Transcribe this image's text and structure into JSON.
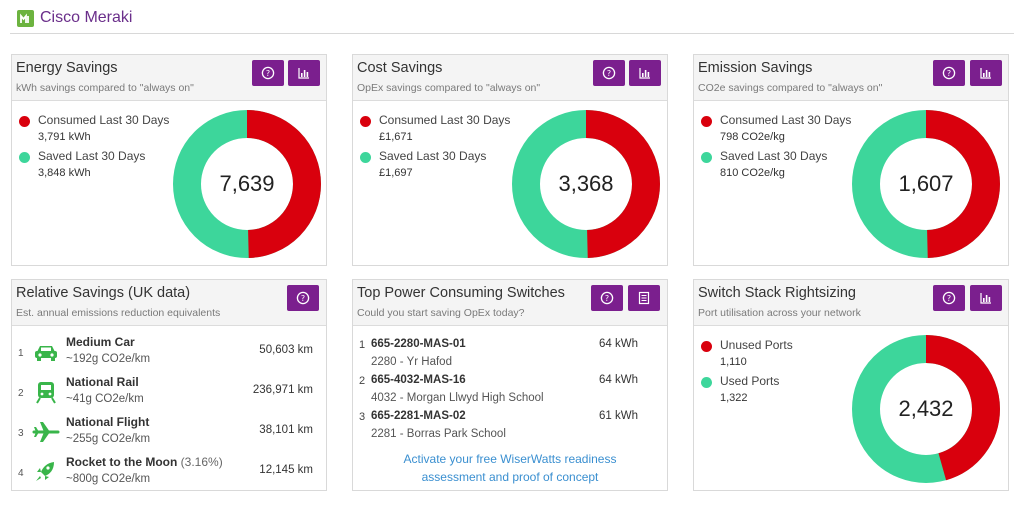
{
  "app": {
    "brand": "Cisco Meraki",
    "logo_icon": "meraki-logo-icon"
  },
  "colors": {
    "consumed": "#d9000d",
    "saved": "#3dd69b",
    "button": "#7b1f8e",
    "link": "#3a8fd0"
  },
  "energy": {
    "title": "Energy Savings",
    "subtitle": "kWh savings compared to \"always on\"",
    "consumed_label": "Consumed Last 30 Days",
    "consumed_value": "3,791 kWh",
    "saved_label": "Saved Last 30 Days",
    "saved_value": "3,848 kWh",
    "total": "7,639",
    "consumed_fraction": 0.496
  },
  "cost": {
    "title": "Cost Savings",
    "subtitle": "OpEx savings compared to \"always on\"",
    "consumed_label": "Consumed Last 30 Days",
    "consumed_value": "£1,671",
    "saved_label": "Saved Last 30 Days",
    "saved_value": "£1,697",
    "total": "3,368",
    "consumed_fraction": 0.496
  },
  "emission": {
    "title": "Emission Savings",
    "subtitle": "CO2e savings compared to \"always on\"",
    "consumed_label": "Consumed Last 30 Days",
    "consumed_value": "798 CO2e/kg",
    "saved_label": "Saved Last 30 Days",
    "saved_value": "810 CO2e/kg",
    "total": "1,607",
    "consumed_fraction": 0.496
  },
  "relative": {
    "title": "Relative Savings (UK data)",
    "subtitle": "Est. annual emissions reduction equivalents",
    "items": [
      {
        "num": "1",
        "name": "Medium Car",
        "pct": "",
        "sub": "~192g CO2e/km",
        "km": "50,603 km",
        "icon": "car-icon"
      },
      {
        "num": "2",
        "name": "National Rail",
        "pct": "",
        "sub": "~41g CO2e/km",
        "km": "236,971 km",
        "icon": "train-icon"
      },
      {
        "num": "3",
        "name": "National Flight",
        "pct": "",
        "sub": "~255g CO2e/km",
        "km": "38,101 km",
        "icon": "plane-icon"
      },
      {
        "num": "4",
        "name": "Rocket to the Moon",
        "pct": "(3.16%)",
        "sub": "~800g CO2e/km",
        "km": "12,145 km",
        "icon": "rocket-icon"
      }
    ]
  },
  "switches": {
    "title": "Top Power Consuming Switches",
    "subtitle": "Could you start saving OpEx today?",
    "items": [
      {
        "num": "1",
        "name": "665-2280-MAS-01",
        "sub": "2280 - Yr Hafod",
        "kwh": "64 kWh"
      },
      {
        "num": "2",
        "name": "665-4032-MAS-16",
        "sub": "4032 - Morgan Llwyd High School",
        "kwh": "64 kWh"
      },
      {
        "num": "3",
        "name": "665-2281-MAS-02",
        "sub": "2281 - Borras Park School",
        "kwh": "61 kWh"
      }
    ],
    "cta_line1": "Activate your free WiserWatts readiness",
    "cta_line2": "assessment and proof of concept"
  },
  "stack": {
    "title": "Switch Stack Rightsizing",
    "subtitle": "Port utilisation across your network",
    "unused_label": "Unused Ports",
    "unused_value": "1,110",
    "used_label": "Used Ports",
    "used_value": "1,322",
    "total": "2,432",
    "unused_fraction": 0.456
  }
}
